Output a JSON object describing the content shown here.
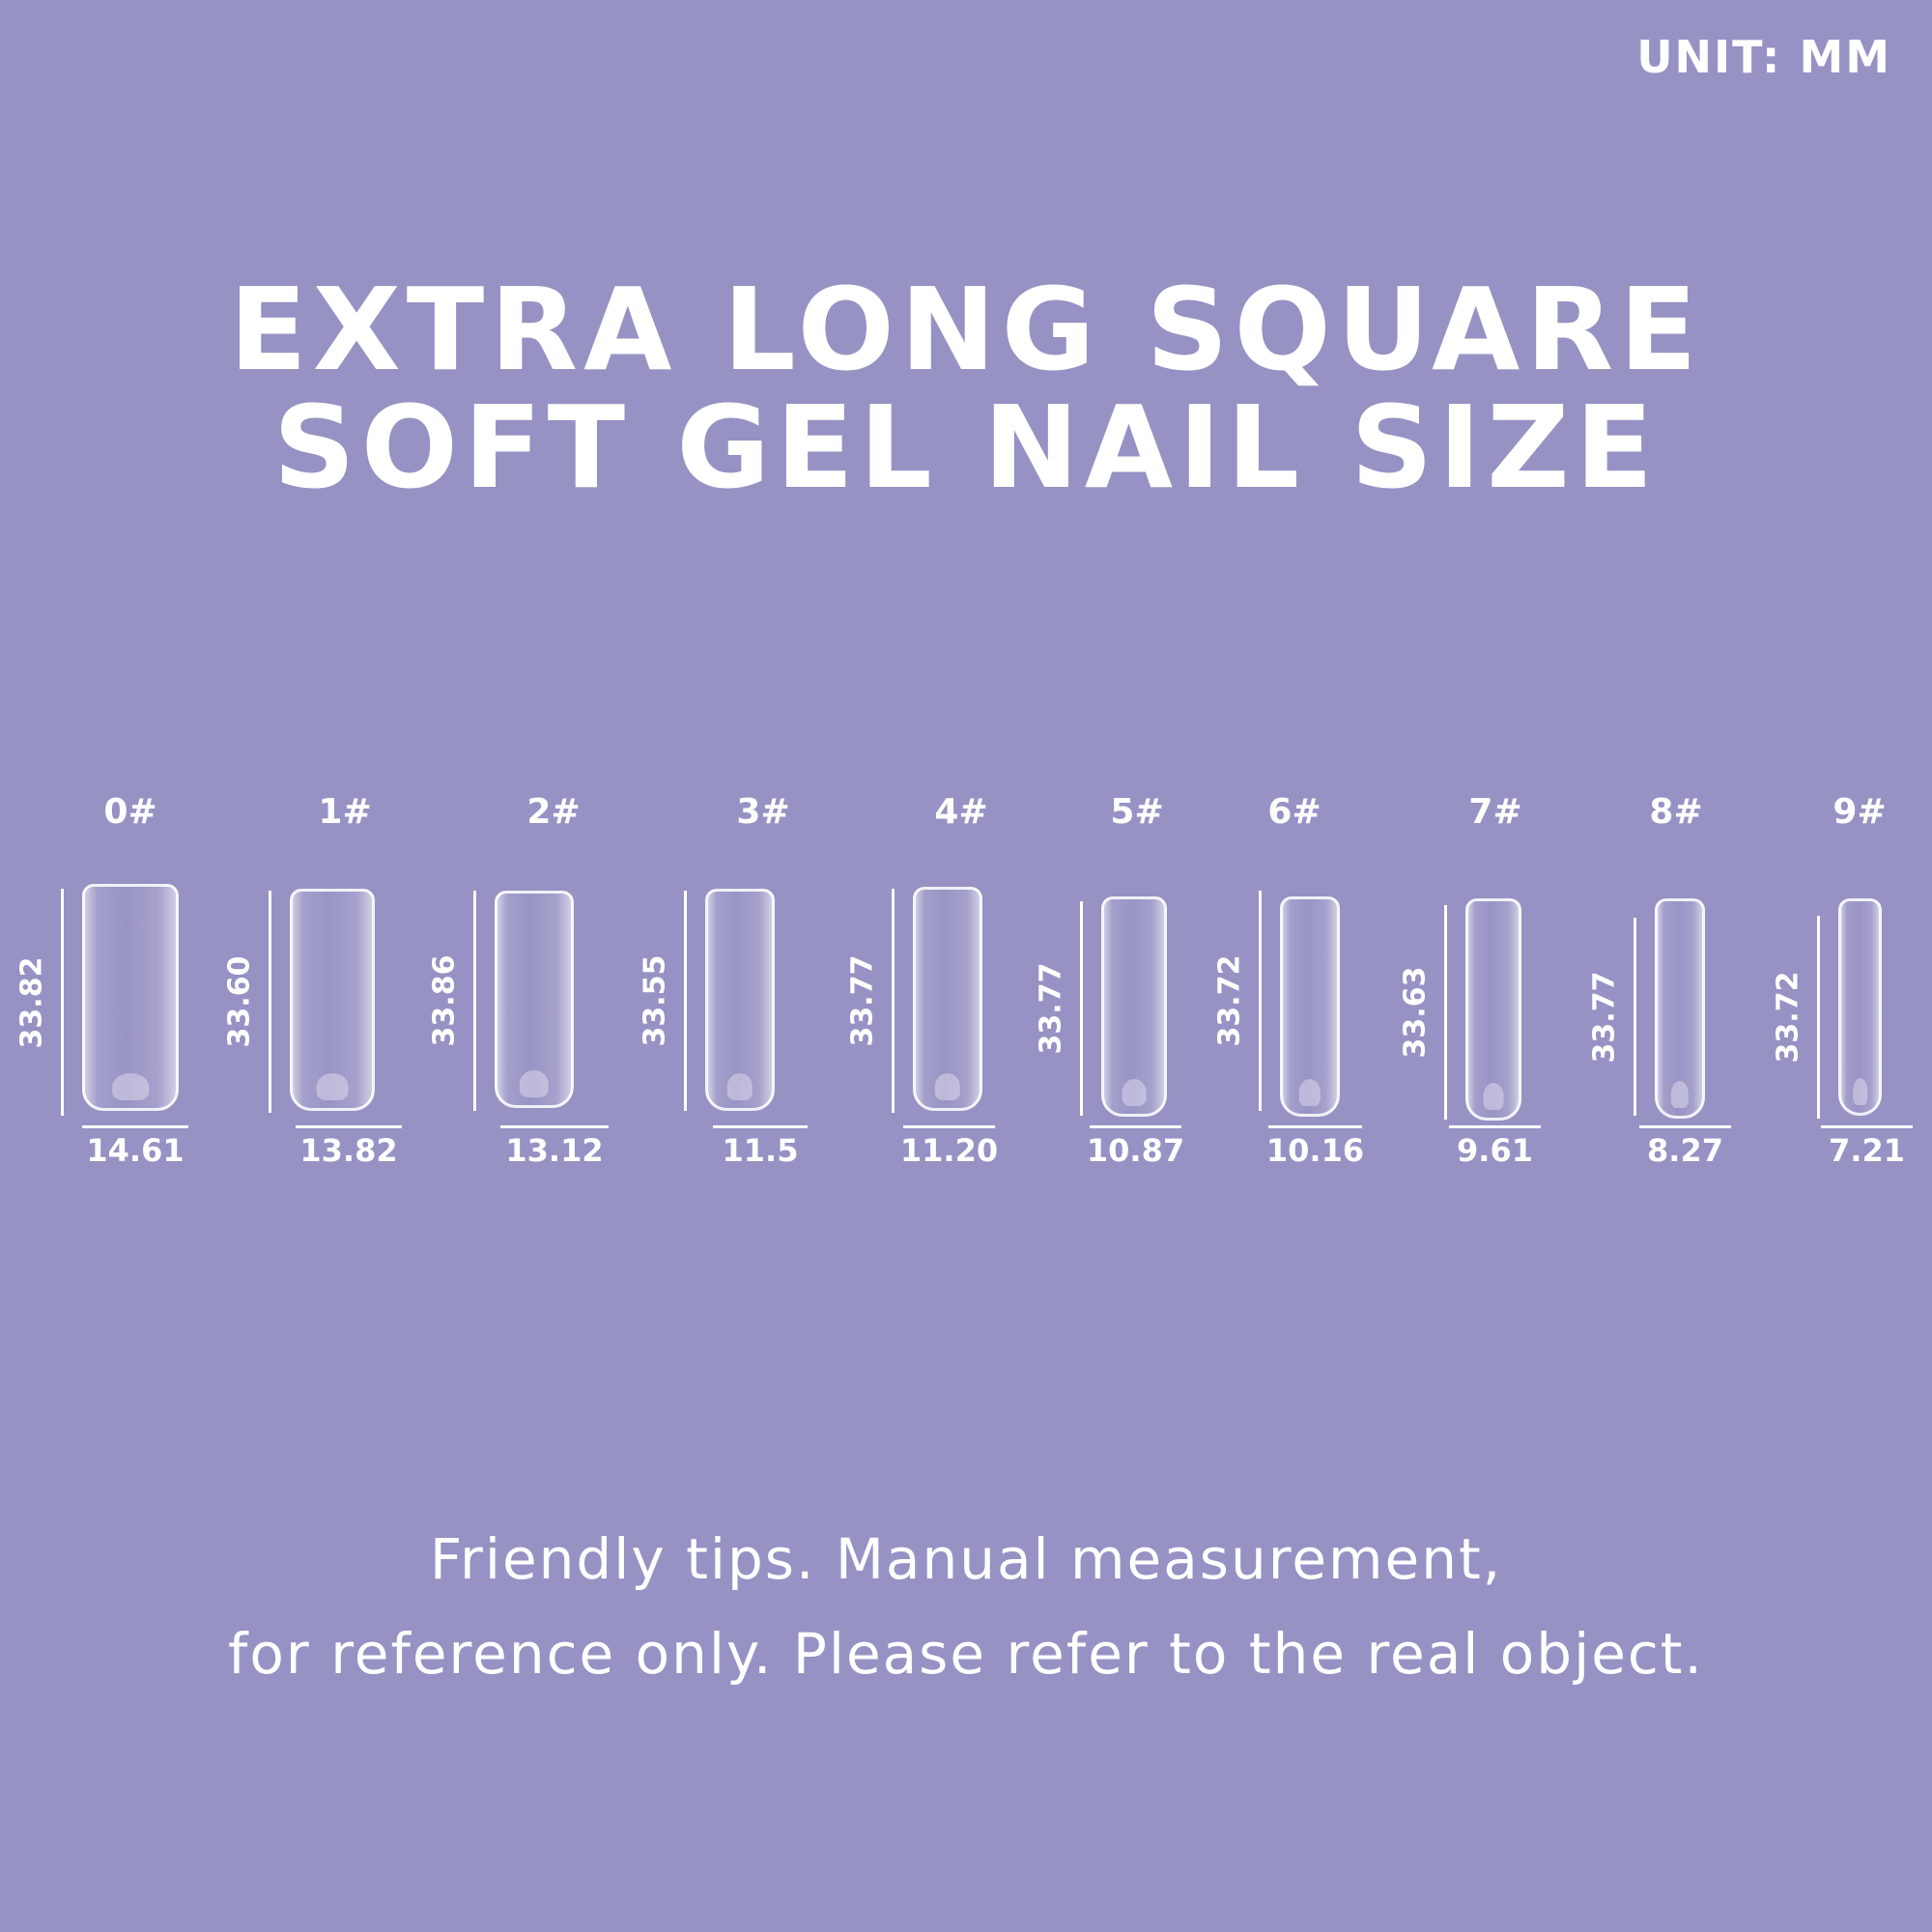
{
  "unit_label": "UNIT: MM",
  "title": {
    "line1": "EXTRA LONG SQUARE",
    "line2": "SOFT GEL NAIL SIZE"
  },
  "nails": [
    {
      "size": "0#",
      "length": "33.82",
      "width": "14.61"
    },
    {
      "size": "1#",
      "length": "33.60",
      "width": "13.82"
    },
    {
      "size": "2#",
      "length": "33.86",
      "width": "13.12"
    },
    {
      "size": "3#",
      "length": "33.55",
      "width": "11.5"
    },
    {
      "size": "4#",
      "length": "33.77",
      "width": "11.20"
    },
    {
      "size": "5#",
      "length": "33.77",
      "width": "10.87"
    },
    {
      "size": "6#",
      "length": "33.72",
      "width": "10.16"
    },
    {
      "size": "7#",
      "length": "33.63",
      "width": "9.61"
    },
    {
      "size": "8#",
      "length": "33.77",
      "width": "8.27"
    },
    {
      "size": "9#",
      "length": "33.72",
      "width": "7.21"
    }
  ],
  "tips": {
    "line1": "Friendly tips. Manual measurement,",
    "line2": "for reference only. Please refer to the real object."
  },
  "colors": {
    "background": "#9692c4",
    "text": "#ffffff"
  }
}
